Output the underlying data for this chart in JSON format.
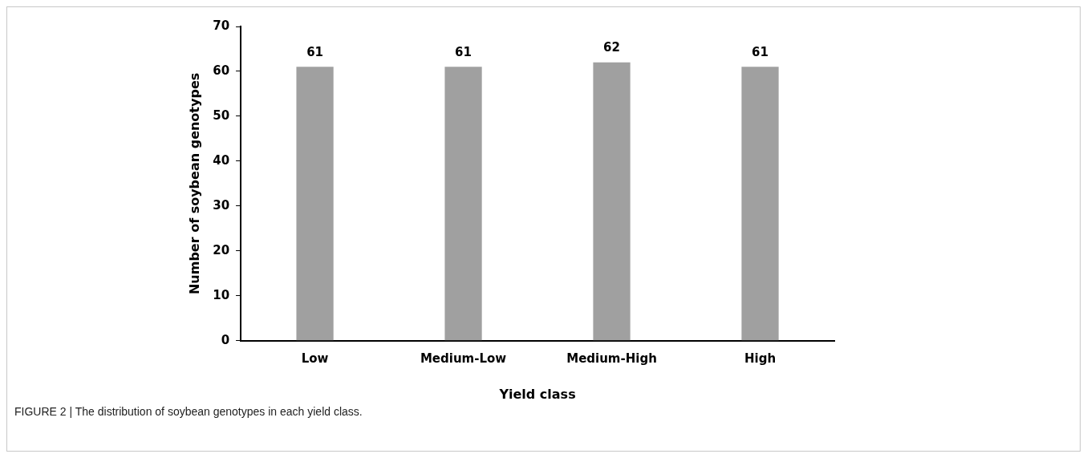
{
  "chart_data": {
    "type": "bar",
    "xlabel": "Yield class",
    "ylabel": "Number of soybean genotypes",
    "categories": [
      "Low",
      "Medium-Low",
      "Medium-High",
      "High"
    ],
    "values": [
      61,
      61,
      62,
      61
    ],
    "color": "#a0a0a0",
    "ylim": [
      0,
      70
    ],
    "yticks": [
      0,
      10,
      20,
      30,
      40,
      50,
      60,
      70
    ],
    "data_labels": true,
    "legend": false,
    "annotations": [
      "FIGURE 2 | The distribution of soybean genotypes in each yield class."
    ]
  }
}
